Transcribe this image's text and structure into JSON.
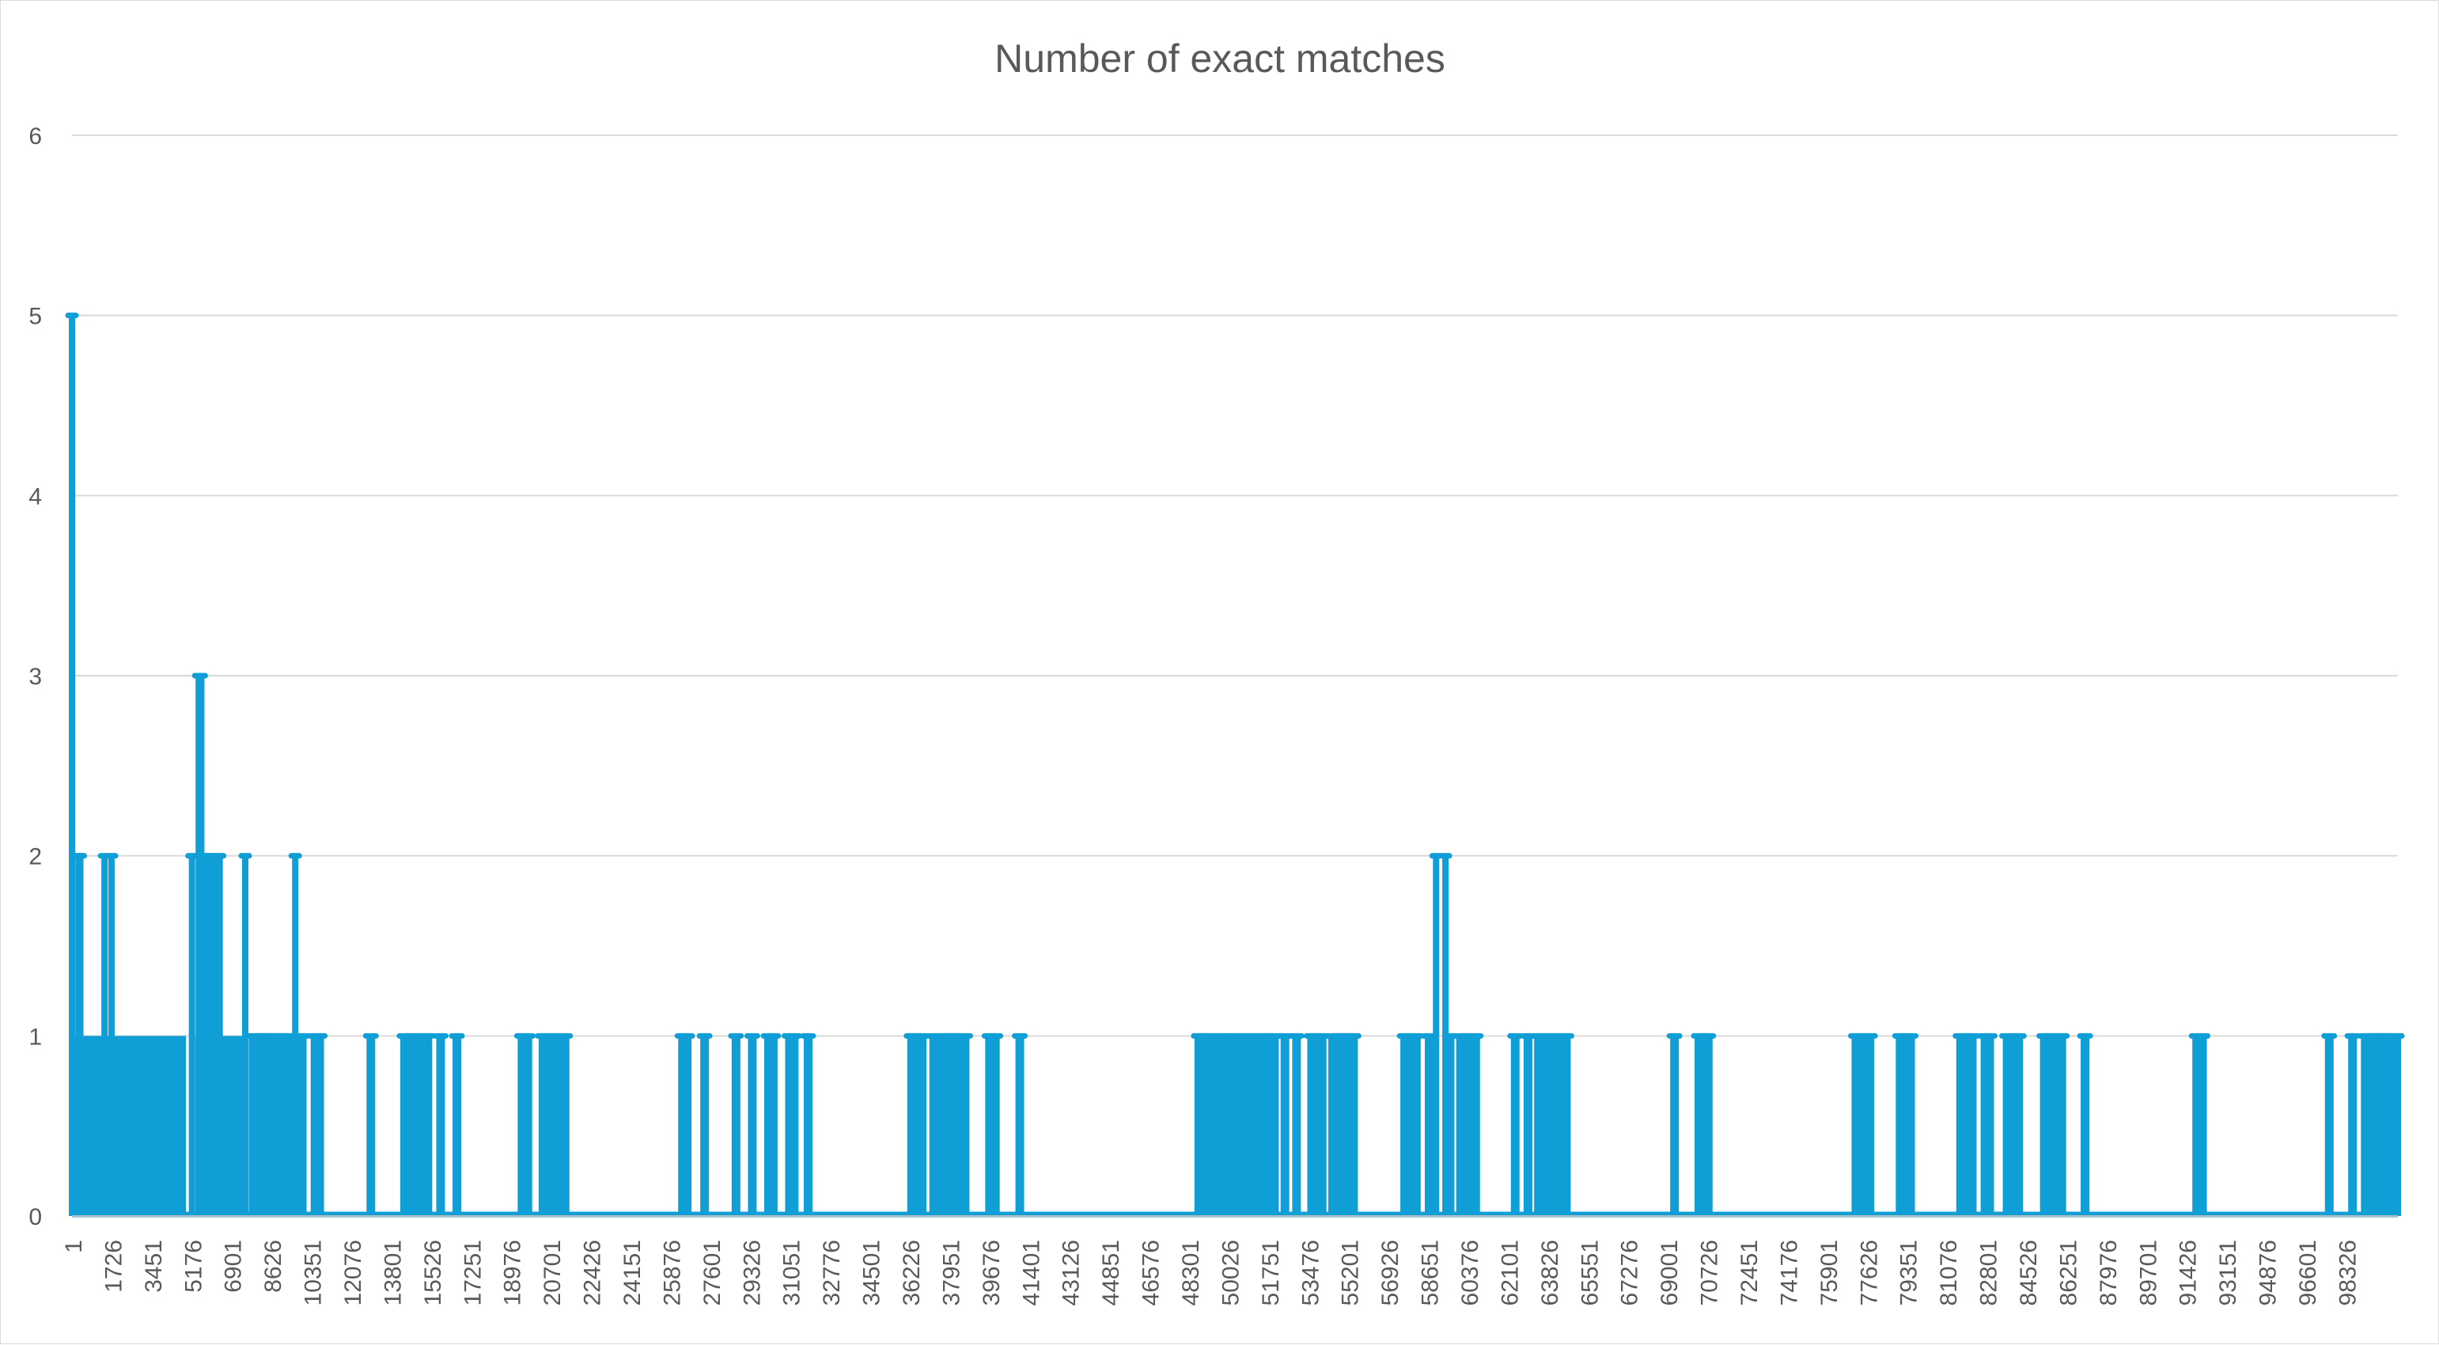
{
  "chart_data": {
    "type": "line",
    "title": "Number of exact matches",
    "xlabel": "",
    "ylabel": "",
    "x_range": [
      1,
      100000
    ],
    "ylim": [
      0,
      6
    ],
    "y_ticks": [
      0,
      1,
      2,
      3,
      4,
      5,
      6
    ],
    "x_tick_labels": [
      "1",
      "1726",
      "3451",
      "5176",
      "6901",
      "8626",
      "10351",
      "12076",
      "13801",
      "15526",
      "17251",
      "18976",
      "20701",
      "22426",
      "24151",
      "25876",
      "27601",
      "29326",
      "31051",
      "32776",
      "34501",
      "36226",
      "37951",
      "39676",
      "41401",
      "43126",
      "44851",
      "46576",
      "48301",
      "50026",
      "51751",
      "53476",
      "55201",
      "56926",
      "58651",
      "60376",
      "62101",
      "63826",
      "65551",
      "67276",
      "69001",
      "70726",
      "72451",
      "74176",
      "75901",
      "77626",
      "79351",
      "81076",
      "82801",
      "84526",
      "86251",
      "87976",
      "89701",
      "91426",
      "93151",
      "94876",
      "96601",
      "98326"
    ],
    "grid": true,
    "legend": "none",
    "color": "#0f9ed5",
    "series": [
      {
        "dense_ranges": [
          [
            1,
            4900
          ],
          [
            5300,
            7600
          ]
        ],
        "points": [
          {
            "x": 1,
            "y": 5
          },
          {
            "x": 280,
            "y": 2
          },
          {
            "x": 360,
            "y": 2
          },
          {
            "x": 1400,
            "y": 2
          },
          {
            "x": 1700,
            "y": 2
          },
          {
            "x": 5160,
            "y": 2
          },
          {
            "x": 5450,
            "y": 3
          },
          {
            "x": 5560,
            "y": 3
          },
          {
            "x": 5750,
            "y": 2
          },
          {
            "x": 5950,
            "y": 2
          },
          {
            "x": 6150,
            "y": 2
          },
          {
            "x": 6350,
            "y": 2
          },
          {
            "x": 7450,
            "y": 2
          },
          {
            "x": 7800,
            "y": 1
          },
          {
            "x": 8000,
            "y": 1
          },
          {
            "x": 8150,
            "y": 1
          },
          {
            "x": 8300,
            "y": 1
          },
          {
            "x": 8450,
            "y": 1
          },
          {
            "x": 8600,
            "y": 1
          },
          {
            "x": 8800,
            "y": 1
          },
          {
            "x": 8900,
            "y": 1
          },
          {
            "x": 9150,
            "y": 1
          },
          {
            "x": 9350,
            "y": 1
          },
          {
            "x": 9600,
            "y": 2
          },
          {
            "x": 9900,
            "y": 1
          },
          {
            "x": 10450,
            "y": 1
          },
          {
            "x": 10650,
            "y": 1
          },
          {
            "x": 12850,
            "y": 1
          },
          {
            "x": 14300,
            "y": 1
          },
          {
            "x": 14550,
            "y": 1
          },
          {
            "x": 14850,
            "y": 1
          },
          {
            "x": 15100,
            "y": 1
          },
          {
            "x": 15300,
            "y": 1
          },
          {
            "x": 15850,
            "y": 1
          },
          {
            "x": 16550,
            "y": 1
          },
          {
            "x": 19350,
            "y": 1
          },
          {
            "x": 19600,
            "y": 1
          },
          {
            "x": 20250,
            "y": 1
          },
          {
            "x": 20500,
            "y": 1
          },
          {
            "x": 20750,
            "y": 1
          },
          {
            "x": 21000,
            "y": 1
          },
          {
            "x": 21200,
            "y": 1
          },
          {
            "x": 26250,
            "y": 1
          },
          {
            "x": 26450,
            "y": 1
          },
          {
            "x": 27200,
            "y": 1
          },
          {
            "x": 28550,
            "y": 1
          },
          {
            "x": 29250,
            "y": 1
          },
          {
            "x": 29950,
            "y": 1
          },
          {
            "x": 30150,
            "y": 1
          },
          {
            "x": 30850,
            "y": 1
          },
          {
            "x": 31050,
            "y": 1
          },
          {
            "x": 31650,
            "y": 1
          },
          {
            "x": 36100,
            "y": 1
          },
          {
            "x": 36300,
            "y": 1
          },
          {
            "x": 36550,
            "y": 1
          },
          {
            "x": 37050,
            "y": 1
          },
          {
            "x": 37350,
            "y": 1
          },
          {
            "x": 37550,
            "y": 1
          },
          {
            "x": 37750,
            "y": 1
          },
          {
            "x": 37950,
            "y": 1
          },
          {
            "x": 38150,
            "y": 1
          },
          {
            "x": 38400,
            "y": 1
          },
          {
            "x": 39450,
            "y": 1
          },
          {
            "x": 39700,
            "y": 1
          },
          {
            "x": 40750,
            "y": 1
          },
          {
            "x": 48450,
            "y": 1
          },
          {
            "x": 48650,
            "y": 1
          },
          {
            "x": 48900,
            "y": 1
          },
          {
            "x": 49250,
            "y": 1
          },
          {
            "x": 49500,
            "y": 1
          },
          {
            "x": 49750,
            "y": 1
          },
          {
            "x": 50000,
            "y": 1
          },
          {
            "x": 50300,
            "y": 1
          },
          {
            "x": 50500,
            "y": 1
          },
          {
            "x": 50750,
            "y": 1
          },
          {
            "x": 51000,
            "y": 1
          },
          {
            "x": 51250,
            "y": 1
          },
          {
            "x": 51450,
            "y": 1
          },
          {
            "x": 51700,
            "y": 1
          },
          {
            "x": 52150,
            "y": 1
          },
          {
            "x": 52650,
            "y": 1
          },
          {
            "x": 53300,
            "y": 1
          },
          {
            "x": 53500,
            "y": 1
          },
          {
            "x": 53750,
            "y": 1
          },
          {
            "x": 54200,
            "y": 1
          },
          {
            "x": 54450,
            "y": 1
          },
          {
            "x": 54650,
            "y": 1
          },
          {
            "x": 54900,
            "y": 1
          },
          {
            "x": 55100,
            "y": 1
          },
          {
            "x": 57300,
            "y": 1
          },
          {
            "x": 57550,
            "y": 1
          },
          {
            "x": 57800,
            "y": 1
          },
          {
            "x": 58350,
            "y": 1
          },
          {
            "x": 58650,
            "y": 2
          },
          {
            "x": 59050,
            "y": 2
          },
          {
            "x": 59250,
            "y": 1
          },
          {
            "x": 59700,
            "y": 1
          },
          {
            "x": 60000,
            "y": 1
          },
          {
            "x": 60350,
            "y": 1
          },
          {
            "x": 62050,
            "y": 1
          },
          {
            "x": 62600,
            "y": 1
          },
          {
            "x": 63050,
            "y": 1
          },
          {
            "x": 63300,
            "y": 1
          },
          {
            "x": 63550,
            "y": 1
          },
          {
            "x": 63750,
            "y": 1
          },
          {
            "x": 64050,
            "y": 1
          },
          {
            "x": 64250,
            "y": 1
          },
          {
            "x": 68900,
            "y": 1
          },
          {
            "x": 69950,
            "y": 1
          },
          {
            "x": 70150,
            "y": 1
          },
          {
            "x": 70350,
            "y": 1
          },
          {
            "x": 76700,
            "y": 1
          },
          {
            "x": 76950,
            "y": 1
          },
          {
            "x": 77300,
            "y": 1
          },
          {
            "x": 78600,
            "y": 1
          },
          {
            "x": 78850,
            "y": 1
          },
          {
            "x": 79050,
            "y": 1
          },
          {
            "x": 81200,
            "y": 1
          },
          {
            "x": 81450,
            "y": 1
          },
          {
            "x": 81700,
            "y": 1
          },
          {
            "x": 82250,
            "y": 1
          },
          {
            "x": 82450,
            "y": 1
          },
          {
            "x": 83200,
            "y": 1
          },
          {
            "x": 83450,
            "y": 1
          },
          {
            "x": 83700,
            "y": 1
          },
          {
            "x": 84800,
            "y": 1
          },
          {
            "x": 85050,
            "y": 1
          },
          {
            "x": 85300,
            "y": 1
          },
          {
            "x": 85550,
            "y": 1
          },
          {
            "x": 86550,
            "y": 1
          },
          {
            "x": 91350,
            "y": 1
          },
          {
            "x": 91600,
            "y": 1
          },
          {
            "x": 97050,
            "y": 1
          },
          {
            "x": 98050,
            "y": 1
          },
          {
            "x": 98600,
            "y": 1
          },
          {
            "x": 98850,
            "y": 1
          },
          {
            "x": 99050,
            "y": 1
          },
          {
            "x": 99200,
            "y": 1
          },
          {
            "x": 99350,
            "y": 1
          },
          {
            "x": 99550,
            "y": 1
          },
          {
            "x": 99750,
            "y": 1
          },
          {
            "x": 99950,
            "y": 1
          }
        ]
      }
    ]
  }
}
